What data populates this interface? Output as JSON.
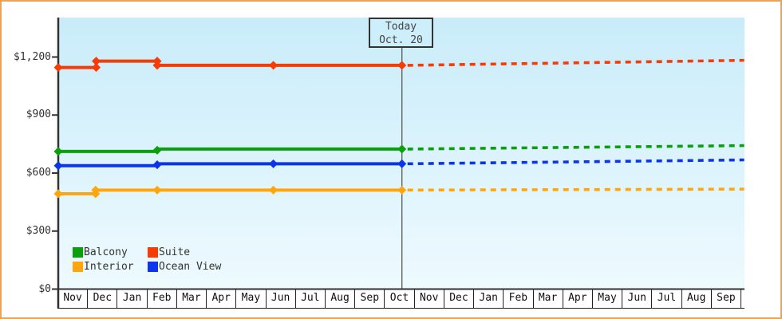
{
  "frame": {
    "border_color": "#e9a45a"
  },
  "chart_data": {
    "type": "line",
    "title": "",
    "x_axis": {
      "months": [
        "Nov",
        "Dec",
        "Jan",
        "Feb",
        "Mar",
        "Apr",
        "May",
        "Jun",
        "Jul",
        "Aug",
        "Sep",
        "Oct",
        "Nov",
        "Dec",
        "Jan",
        "Feb",
        "Mar",
        "Apr",
        "May",
        "Jun",
        "Jul",
        "Aug",
        "Sep"
      ]
    },
    "y_axis": {
      "ticks": [
        {
          "label": "$0",
          "value": 0
        },
        {
          "label": "$300",
          "value": 300
        },
        {
          "label": "$600",
          "value": 600
        },
        {
          "label": "$900",
          "value": 900
        },
        {
          "label": "$1,200",
          "value": 1200
        }
      ],
      "range": [
        0,
        1400
      ],
      "grid": "off"
    },
    "today": {
      "title": "Today",
      "date": "Oct. 20",
      "month_index": 11.6
    },
    "legend": {
      "position": "bottom-left",
      "items": [
        {
          "label": "Balcony",
          "color": "#0ba00b"
        },
        {
          "label": "Suite",
          "color": "#f63b05"
        },
        {
          "label": "Interior",
          "color": "#ffa60e"
        },
        {
          "label": "Ocean View",
          "color": "#0b35ec"
        }
      ]
    },
    "series": [
      {
        "name": "Suite",
        "color": "#f63b05",
        "solid_points": [
          [
            0,
            1146
          ],
          [
            1.28,
            1146
          ],
          [
            1.28,
            1179
          ],
          [
            3.34,
            1179
          ],
          [
            3.34,
            1157
          ],
          [
            11.6,
            1157
          ]
        ],
        "markers": [
          [
            0,
            1146
          ],
          [
            1.28,
            1146
          ],
          [
            1.28,
            1179
          ],
          [
            3.34,
            1179
          ],
          [
            3.34,
            1157
          ],
          [
            7.26,
            1157
          ],
          [
            11.6,
            1157
          ]
        ],
        "dashed_points": [
          [
            11.6,
            1157
          ],
          [
            23.15,
            1183
          ]
        ]
      },
      {
        "name": "Balcony",
        "color": "#0ba00b",
        "solid_points": [
          [
            0,
            712
          ],
          [
            3.34,
            712
          ],
          [
            3.34,
            724
          ],
          [
            11.6,
            724
          ]
        ],
        "markers": [
          [
            0,
            712
          ],
          [
            3.34,
            718
          ],
          [
            11.6,
            724
          ]
        ],
        "dashed_points": [
          [
            11.6,
            724
          ],
          [
            23.15,
            742
          ]
        ]
      },
      {
        "name": "Ocean View",
        "color": "#0b35ec",
        "solid_points": [
          [
            0,
            638
          ],
          [
            3.34,
            638
          ],
          [
            3.34,
            648
          ],
          [
            11.6,
            648
          ]
        ],
        "markers": [
          [
            0,
            638
          ],
          [
            3.34,
            643
          ],
          [
            7.26,
            648
          ],
          [
            11.6,
            648
          ]
        ],
        "dashed_points": [
          [
            11.6,
            648
          ],
          [
            23.15,
            668
          ]
        ]
      },
      {
        "name": "Interior",
        "color": "#ffa60e",
        "solid_points": [
          [
            0,
            493
          ],
          [
            1.26,
            493
          ],
          [
            1.26,
            512
          ],
          [
            11.6,
            512
          ]
        ],
        "markers": [
          [
            0,
            493
          ],
          [
            1.26,
            493
          ],
          [
            1.26,
            512
          ],
          [
            3.34,
            512
          ],
          [
            7.26,
            512
          ],
          [
            11.6,
            512
          ]
        ],
        "dashed_points": [
          [
            11.6,
            512
          ],
          [
            23.15,
            517
          ]
        ]
      }
    ]
  }
}
